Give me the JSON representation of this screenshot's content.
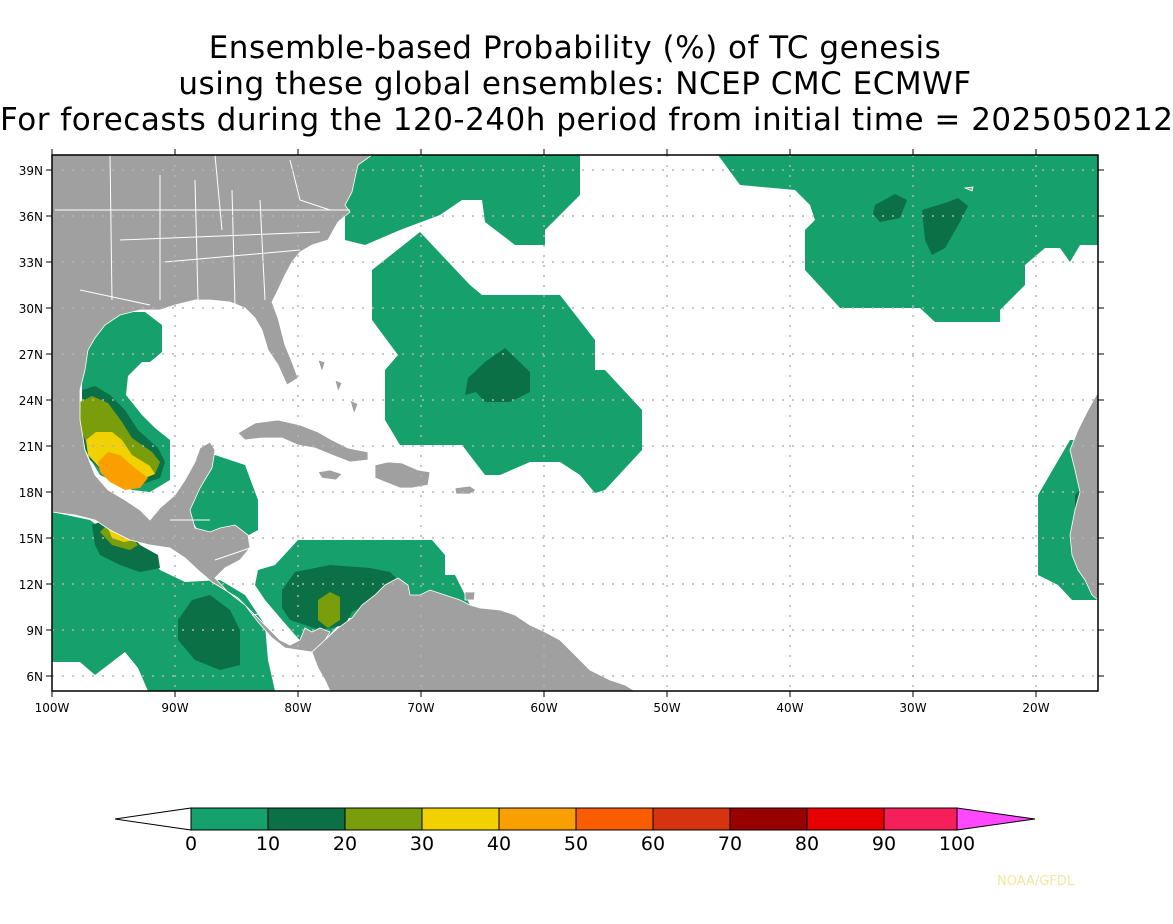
{
  "title": {
    "line1": "Ensemble-based Probability (%) of TC genesis",
    "line2": "using these global ensembles:   NCEP CMC ECMWF",
    "line3": "For forecasts during the 120-240h period from initial time = 2025050212"
  },
  "map": {
    "lat_ticks": [
      "39N",
      "36N",
      "33N",
      "30N",
      "27N",
      "24N",
      "21N",
      "18N",
      "15N",
      "12N",
      "9N",
      "6N"
    ],
    "lon_ticks": [
      "100W",
      "90W",
      "80W",
      "70W",
      "60W",
      "50W",
      "40W",
      "30W",
      "20W"
    ],
    "colors": {
      "land": "#a0a0a0",
      "ocean": "#ffffff",
      "grid": "#b4b4b4",
      "border": "#ffffff"
    }
  },
  "legend": {
    "levels": [
      "0",
      "10",
      "20",
      "30",
      "40",
      "50",
      "60",
      "70",
      "80",
      "90",
      "100"
    ],
    "colors": [
      "#ffffff",
      "#16a06b",
      "#0b7045",
      "#7a9e0b",
      "#f2d100",
      "#f9a000",
      "#fa5c00",
      "#d63410",
      "#990000",
      "#e60000",
      "#f5205a",
      "#ff48ff"
    ]
  },
  "credit": "NOAA/GFDL"
}
